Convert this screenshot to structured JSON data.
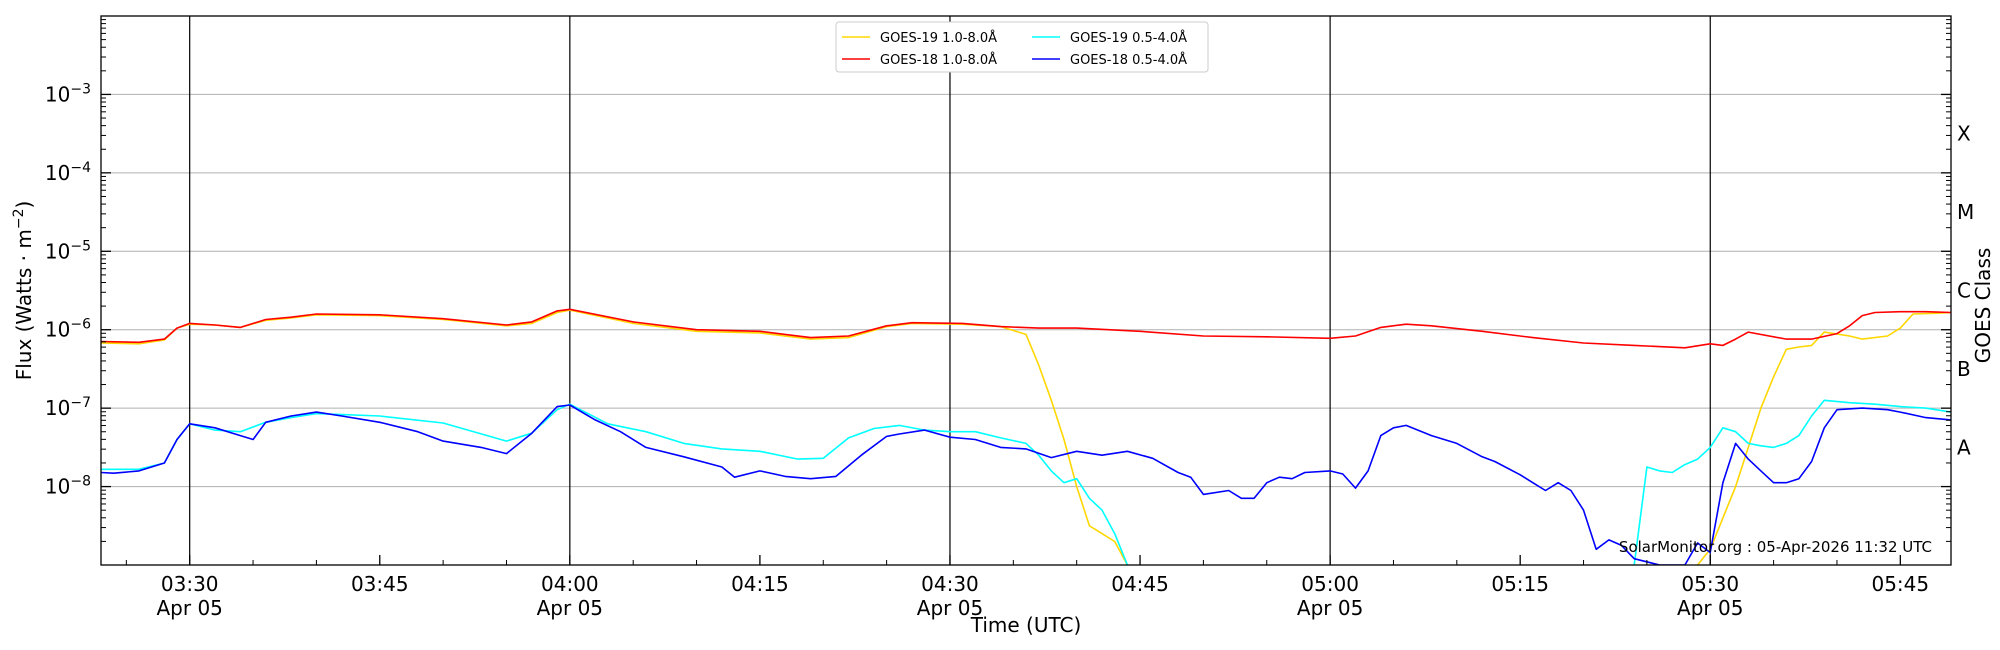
{
  "chart_data": {
    "type": "line",
    "xlabel": "Time (UTC)",
    "ylabel_main": "Flux (Watts · m",
    "ylabel_sup": "−2",
    "ylabel_close": ")",
    "y2label": "GOES Class",
    "credit": "SolarMonitor.org : 05-Apr-2026 11:32 UTC",
    "log_scale": true,
    "xlim_minutes": [
      203,
      349
    ],
    "ylim_exp": [
      -9,
      -2
    ],
    "x_ticks": [
      {
        "m": 210,
        "time": "03:30",
        "date": "Apr 05"
      },
      {
        "m": 225,
        "time": "03:45",
        "date": ""
      },
      {
        "m": 240,
        "time": "04:00",
        "date": "Apr 05"
      },
      {
        "m": 255,
        "time": "04:15",
        "date": ""
      },
      {
        "m": 270,
        "time": "04:30",
        "date": "Apr 05"
      },
      {
        "m": 285,
        "time": "04:45",
        "date": ""
      },
      {
        "m": 300,
        "time": "05:00",
        "date": "Apr 05"
      },
      {
        "m": 315,
        "time": "05:15",
        "date": ""
      },
      {
        "m": 330,
        "time": "05:30",
        "date": "Apr 05"
      },
      {
        "m": 345,
        "time": "05:45",
        "date": ""
      }
    ],
    "day_lines": [
      210,
      240,
      270,
      300,
      330
    ],
    "y_ticks": [
      {
        "exp": -8,
        "mant": "10",
        "sup": "−8"
      },
      {
        "exp": -7,
        "mant": "10",
        "sup": "−7"
      },
      {
        "exp": -6,
        "mant": "10",
        "sup": "−6"
      },
      {
        "exp": -5,
        "mant": "10",
        "sup": "−5"
      },
      {
        "exp": -4,
        "mant": "10",
        "sup": "−4"
      },
      {
        "exp": -3,
        "mant": "10",
        "sup": "−3"
      }
    ],
    "goes_classes": [
      {
        "label": "A",
        "exp": -7.5
      },
      {
        "label": "B",
        "exp": -6.5
      },
      {
        "label": "C",
        "exp": -5.5
      },
      {
        "label": "M",
        "exp": -4.5
      },
      {
        "label": "X",
        "exp": -3.5
      }
    ],
    "legend": [
      {
        "name": "GOES-19 1.0-8.0Å",
        "color": "#FFD700"
      },
      {
        "name": "GOES-19 0.5-4.0Å",
        "color": "#00FFFF"
      },
      {
        "name": "GOES-18 1.0-8.0Å",
        "color": "#FF0000"
      },
      {
        "name": "GOES-18 0.5-4.0Å",
        "color": "#0000FF"
      }
    ],
    "series": [
      {
        "name": "GOES-19 1.0-8.0Å",
        "color": "#FFD700",
        "points": [
          [
            203,
            -6.17
          ],
          [
            206,
            -6.18
          ],
          [
            208,
            -6.13
          ],
          [
            209,
            -5.98
          ],
          [
            210,
            -5.93
          ],
          [
            212,
            -5.94
          ],
          [
            214,
            -5.97
          ],
          [
            216,
            -5.88
          ],
          [
            218,
            -5.85
          ],
          [
            220,
            -5.81
          ],
          [
            225,
            -5.82
          ],
          [
            230,
            -5.87
          ],
          [
            235,
            -5.95
          ],
          [
            237,
            -5.92
          ],
          [
            239,
            -5.78
          ],
          [
            240,
            -5.75
          ],
          [
            245,
            -5.92
          ],
          [
            250,
            -6.02
          ],
          [
            255,
            -6.04
          ],
          [
            259,
            -6.12
          ],
          [
            262,
            -6.1
          ],
          [
            265,
            -5.96
          ],
          [
            267,
            -5.92
          ],
          [
            271,
            -5.93
          ],
          [
            274,
            -5.96
          ],
          [
            276,
            -6.06
          ],
          [
            277,
            -6.45
          ],
          [
            278,
            -6.9
          ],
          [
            279,
            -7.4
          ],
          [
            280,
            -8.0
          ],
          [
            281,
            -8.5
          ],
          [
            282,
            -8.6
          ],
          [
            283,
            -8.7
          ],
          [
            284,
            -9.0
          ]
        ]
      },
      {
        "name": "GOES-19 1.0-8.0Å",
        "color": "#FFD700",
        "points": [
          [
            329,
            -9.0
          ],
          [
            330,
            -8.8
          ],
          [
            331,
            -8.4
          ],
          [
            332,
            -8.0
          ],
          [
            333,
            -7.5
          ],
          [
            334,
            -7.0
          ],
          [
            335,
            -6.6
          ],
          [
            336,
            -6.25
          ],
          [
            337,
            -6.22
          ],
          [
            338,
            -6.2
          ],
          [
            339,
            -6.03
          ],
          [
            341,
            -6.08
          ],
          [
            342,
            -6.12
          ],
          [
            344,
            -6.08
          ],
          [
            345,
            -5.98
          ],
          [
            346,
            -5.8
          ],
          [
            348,
            -5.79
          ],
          [
            349,
            -5.78
          ]
        ]
      },
      {
        "name": "GOES-19 0.5-4.0Å",
        "color": "#00FFFF",
        "points": [
          [
            203,
            -7.78
          ],
          [
            206,
            -7.78
          ],
          [
            208,
            -7.7
          ],
          [
            209,
            -7.4
          ],
          [
            210,
            -7.2
          ],
          [
            212,
            -7.28
          ],
          [
            214,
            -7.3
          ],
          [
            216,
            -7.18
          ],
          [
            218,
            -7.12
          ],
          [
            220,
            -7.07
          ],
          [
            225,
            -7.1
          ],
          [
            230,
            -7.19
          ],
          [
            235,
            -7.42
          ],
          [
            237,
            -7.32
          ],
          [
            239,
            -7.02
          ],
          [
            240,
            -6.95
          ],
          [
            243,
            -7.2
          ],
          [
            246,
            -7.3
          ],
          [
            249,
            -7.45
          ],
          [
            252,
            -7.52
          ],
          [
            255,
            -7.55
          ],
          [
            258,
            -7.65
          ],
          [
            260,
            -7.64
          ],
          [
            262,
            -7.38
          ],
          [
            264,
            -7.26
          ],
          [
            266,
            -7.22
          ],
          [
            268,
            -7.28
          ],
          [
            270,
            -7.3
          ],
          [
            272,
            -7.3
          ],
          [
            274,
            -7.38
          ],
          [
            276,
            -7.45
          ],
          [
            277,
            -7.6
          ],
          [
            278,
            -7.8
          ],
          [
            279,
            -7.95
          ],
          [
            280,
            -7.9
          ],
          [
            281,
            -8.15
          ],
          [
            282,
            -8.3
          ],
          [
            283,
            -8.6
          ],
          [
            284,
            -9.0
          ]
        ]
      },
      {
        "name": "GOES-19 0.5-4.0Å",
        "color": "#00FFFF",
        "points": [
          [
            324,
            -9.0
          ],
          [
            325,
            -7.75
          ],
          [
            326,
            -7.8
          ],
          [
            327,
            -7.82
          ],
          [
            328,
            -7.72
          ],
          [
            329,
            -7.65
          ],
          [
            330,
            -7.5
          ],
          [
            331,
            -7.25
          ],
          [
            332,
            -7.3
          ],
          [
            333,
            -7.45
          ],
          [
            334,
            -7.48
          ],
          [
            335,
            -7.5
          ],
          [
            336,
            -7.45
          ],
          [
            337,
            -7.35
          ],
          [
            338,
            -7.1
          ],
          [
            339,
            -6.9
          ],
          [
            341,
            -6.93
          ],
          [
            343,
            -6.95
          ],
          [
            345,
            -6.98
          ],
          [
            347,
            -7.0
          ],
          [
            349,
            -7.05
          ]
        ]
      },
      {
        "name": "GOES-18 1.0-8.0Å",
        "color": "#FF0000",
        "points": [
          [
            203,
            -6.15
          ],
          [
            206,
            -6.16
          ],
          [
            208,
            -6.12
          ],
          [
            209,
            -5.98
          ],
          [
            210,
            -5.92
          ],
          [
            212,
            -5.94
          ],
          [
            214,
            -5.97
          ],
          [
            216,
            -5.87
          ],
          [
            218,
            -5.84
          ],
          [
            220,
            -5.8
          ],
          [
            225,
            -5.81
          ],
          [
            230,
            -5.86
          ],
          [
            235,
            -5.94
          ],
          [
            237,
            -5.9
          ],
          [
            239,
            -5.76
          ],
          [
            240,
            -5.74
          ],
          [
            245,
            -5.9
          ],
          [
            250,
            -6.0
          ],
          [
            255,
            -6.02
          ],
          [
            259,
            -6.1
          ],
          [
            262,
            -6.08
          ],
          [
            265,
            -5.95
          ],
          [
            267,
            -5.91
          ],
          [
            271,
            -5.92
          ],
          [
            274,
            -5.96
          ],
          [
            277,
            -5.98
          ],
          [
            280,
            -5.98
          ],
          [
            285,
            -6.02
          ],
          [
            290,
            -6.08
          ],
          [
            295,
            -6.09
          ],
          [
            300,
            -6.11
          ],
          [
            302,
            -6.08
          ],
          [
            304,
            -5.97
          ],
          [
            306,
            -5.93
          ],
          [
            308,
            -5.95
          ],
          [
            312,
            -6.02
          ],
          [
            316,
            -6.1
          ],
          [
            320,
            -6.17
          ],
          [
            324,
            -6.2
          ],
          [
            328,
            -6.23
          ],
          [
            330,
            -6.18
          ],
          [
            331,
            -6.2
          ],
          [
            332,
            -6.12
          ],
          [
            333,
            -6.03
          ],
          [
            336,
            -6.12
          ],
          [
            338,
            -6.12
          ],
          [
            340,
            -6.05
          ],
          [
            341,
            -5.95
          ],
          [
            342,
            -5.82
          ],
          [
            343,
            -5.78
          ],
          [
            345,
            -5.77
          ],
          [
            347,
            -5.77
          ],
          [
            349,
            -5.78
          ]
        ]
      },
      {
        "name": "GOES-18 0.5-4.0Å",
        "color": "#0000FF",
        "points": [
          [
            203,
            -7.82
          ],
          [
            204,
            -7.83
          ],
          [
            206,
            -7.8
          ],
          [
            208,
            -7.7
          ],
          [
            209,
            -7.4
          ],
          [
            210,
            -7.2
          ],
          [
            212,
            -7.25
          ],
          [
            214,
            -7.35
          ],
          [
            215,
            -7.4
          ],
          [
            216,
            -7.18
          ],
          [
            218,
            -7.1
          ],
          [
            220,
            -7.05
          ],
          [
            222,
            -7.1
          ],
          [
            225,
            -7.18
          ],
          [
            228,
            -7.3
          ],
          [
            230,
            -7.42
          ],
          [
            233,
            -7.5
          ],
          [
            235,
            -7.58
          ],
          [
            237,
            -7.32
          ],
          [
            239,
            -6.98
          ],
          [
            240,
            -6.96
          ],
          [
            242,
            -7.15
          ],
          [
            244,
            -7.3
          ],
          [
            246,
            -7.5
          ],
          [
            249,
            -7.62
          ],
          [
            252,
            -7.75
          ],
          [
            253,
            -7.88
          ],
          [
            255,
            -7.8
          ],
          [
            257,
            -7.87
          ],
          [
            259,
            -7.9
          ],
          [
            261,
            -7.87
          ],
          [
            263,
            -7.6
          ],
          [
            265,
            -7.36
          ],
          [
            266,
            -7.33
          ],
          [
            268,
            -7.28
          ],
          [
            270,
            -7.37
          ],
          [
            272,
            -7.4
          ],
          [
            274,
            -7.5
          ],
          [
            276,
            -7.52
          ],
          [
            278,
            -7.63
          ],
          [
            280,
            -7.55
          ],
          [
            282,
            -7.6
          ],
          [
            284,
            -7.55
          ],
          [
            286,
            -7.64
          ],
          [
            288,
            -7.82
          ],
          [
            289,
            -7.88
          ],
          [
            290,
            -8.1
          ],
          [
            292,
            -8.05
          ],
          [
            293,
            -8.15
          ],
          [
            294,
            -8.15
          ],
          [
            295,
            -7.95
          ],
          [
            296,
            -7.88
          ],
          [
            297,
            -7.9
          ],
          [
            298,
            -7.82
          ],
          [
            300,
            -7.8
          ],
          [
            301,
            -7.84
          ],
          [
            302,
            -8.02
          ],
          [
            303,
            -7.8
          ],
          [
            304,
            -7.35
          ],
          [
            305,
            -7.25
          ],
          [
            306,
            -7.22
          ],
          [
            308,
            -7.35
          ],
          [
            310,
            -7.45
          ],
          [
            312,
            -7.62
          ],
          [
            313,
            -7.68
          ],
          [
            315,
            -7.85
          ],
          [
            316,
            -7.95
          ],
          [
            317,
            -8.05
          ],
          [
            318,
            -7.95
          ],
          [
            319,
            -8.05
          ],
          [
            320,
            -8.3
          ],
          [
            321,
            -8.8
          ],
          [
            322,
            -8.68
          ],
          [
            323,
            -8.75
          ],
          [
            324,
            -8.92
          ],
          [
            326,
            -9.0
          ],
          [
            328,
            -9.0
          ],
          [
            329,
            -8.72
          ],
          [
            330,
            -8.84
          ],
          [
            331,
            -7.95
          ],
          [
            332,
            -7.45
          ],
          [
            333,
            -7.65
          ],
          [
            334,
            -7.8
          ],
          [
            335,
            -7.95
          ],
          [
            336,
            -7.95
          ],
          [
            337,
            -7.9
          ],
          [
            338,
            -7.68
          ],
          [
            339,
            -7.25
          ],
          [
            340,
            -7.02
          ],
          [
            342,
            -7.0
          ],
          [
            344,
            -7.02
          ],
          [
            345,
            -7.05
          ],
          [
            347,
            -7.12
          ],
          [
            349,
            -7.15
          ]
        ]
      }
    ]
  }
}
